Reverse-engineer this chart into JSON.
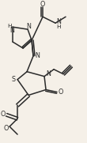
{
  "bg_color": "#f5f0e8",
  "bond_color": "#2a2a2a",
  "bond_width": 1.1,
  "text_color": "#2a2a2a",
  "font_size": 5.8,
  "fig_width": 1.1,
  "fig_height": 1.81,
  "dpi": 100,
  "xlim": [
    0,
    110
  ],
  "ylim": [
    0,
    181
  ]
}
